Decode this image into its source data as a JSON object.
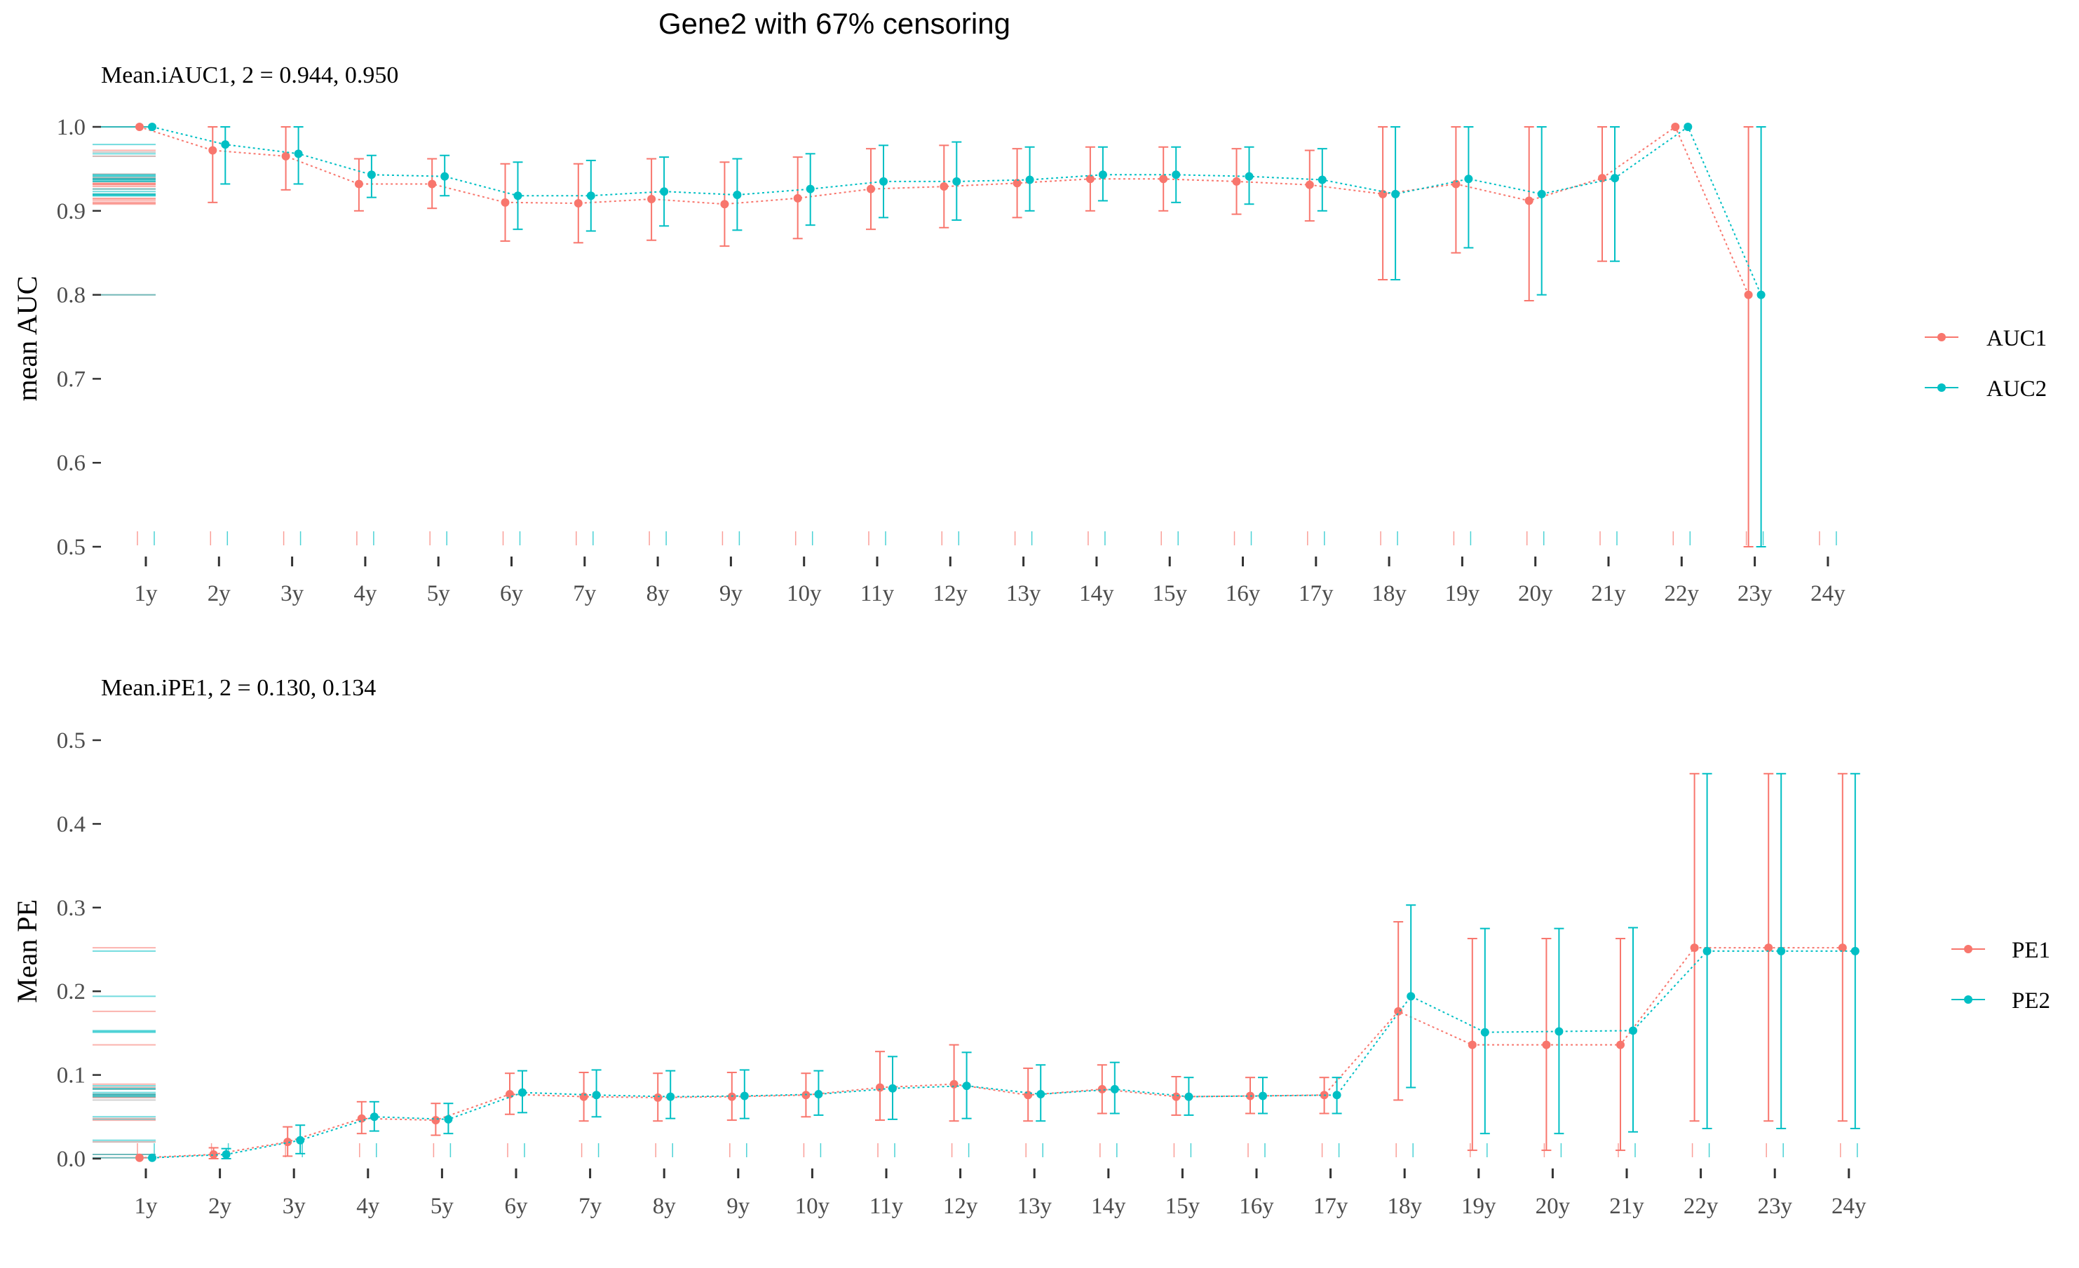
{
  "title": "Gene2 with 67% censoring",
  "colors": {
    "series1": "#F8766D",
    "series2": "#00BFC4",
    "tick": "#333333",
    "text": "#4d4d4d"
  },
  "chart_data": [
    {
      "type": "line",
      "subtitle": "Mean.iAUC1, 2 =  0.944, 0.950",
      "ylabel": "mean AUC",
      "xlabel": "",
      "ylim": [
        0.5,
        1.0
      ],
      "y_ticks": [
        "0.5",
        "0.6",
        "0.7",
        "0.8",
        "0.9",
        "1.0"
      ],
      "categories": [
        "1y",
        "2y",
        "3y",
        "4y",
        "5y",
        "6y",
        "7y",
        "8y",
        "9y",
        "10y",
        "11y",
        "12y",
        "13y",
        "14y",
        "15y",
        "16y",
        "17y",
        "18y",
        "19y",
        "20y",
        "21y",
        "22y",
        "23y",
        "24y"
      ],
      "grid": false,
      "legend_position": "right",
      "series": [
        {
          "name": "AUC1",
          "values": [
            1.0,
            0.972,
            0.965,
            0.932,
            0.932,
            0.91,
            0.909,
            0.914,
            0.908,
            0.915,
            0.926,
            0.929,
            0.933,
            0.938,
            0.938,
            0.935,
            0.931,
            0.92,
            0.932,
            0.912,
            0.939,
            1.0,
            0.8,
            null
          ],
          "lower": [
            null,
            0.91,
            0.925,
            0.9,
            0.903,
            0.864,
            0.862,
            0.865,
            0.858,
            0.867,
            0.878,
            0.88,
            0.892,
            0.9,
            0.9,
            0.896,
            0.888,
            0.818,
            0.85,
            0.793,
            0.84,
            null,
            0.5,
            null
          ],
          "upper": [
            null,
            1.0,
            1.0,
            0.962,
            0.962,
            0.956,
            0.956,
            0.962,
            0.958,
            0.964,
            0.974,
            0.978,
            0.974,
            0.976,
            0.976,
            0.974,
            0.972,
            1.0,
            1.0,
            1.0,
            1.0,
            null,
            1.0,
            null
          ]
        },
        {
          "name": "AUC2",
          "values": [
            1.0,
            0.979,
            0.968,
            0.943,
            0.941,
            0.918,
            0.918,
            0.923,
            0.919,
            0.926,
            0.935,
            0.935,
            0.937,
            0.943,
            0.943,
            0.941,
            0.937,
            0.92,
            0.938,
            0.92,
            0.939,
            1.0,
            0.8,
            null
          ],
          "lower": [
            null,
            0.932,
            0.932,
            0.916,
            0.918,
            0.878,
            0.876,
            0.882,
            0.877,
            0.883,
            0.892,
            0.889,
            0.9,
            0.912,
            0.91,
            0.908,
            0.9,
            0.818,
            0.856,
            0.8,
            0.84,
            null,
            0.5,
            null
          ],
          "upper": [
            null,
            1.0,
            1.0,
            0.966,
            0.966,
            0.958,
            0.96,
            0.964,
            0.962,
            0.968,
            0.978,
            0.982,
            0.976,
            0.976,
            0.976,
            0.976,
            0.974,
            1.0,
            1.0,
            1.0,
            1.0,
            null,
            1.0,
            null
          ]
        }
      ]
    },
    {
      "type": "line",
      "subtitle": "Mean.iPE1, 2 =  0.130, 0.134",
      "ylabel": "Mean PE",
      "xlabel": "",
      "ylim": [
        0.0,
        0.5
      ],
      "y_ticks": [
        "0.0",
        "0.1",
        "0.2",
        "0.3",
        "0.4",
        "0.5"
      ],
      "categories": [
        "1y",
        "2y",
        "3y",
        "4y",
        "5y",
        "6y",
        "7y",
        "8y",
        "9y",
        "10y",
        "11y",
        "12y",
        "13y",
        "14y",
        "15y",
        "16y",
        "17y",
        "18y",
        "19y",
        "20y",
        "21y",
        "22y",
        "23y",
        "24y"
      ],
      "grid": false,
      "legend_position": "right",
      "series": [
        {
          "name": "PE1",
          "values": [
            0.001,
            0.005,
            0.02,
            0.048,
            0.046,
            0.077,
            0.074,
            0.073,
            0.074,
            0.076,
            0.085,
            0.089,
            0.076,
            0.083,
            0.074,
            0.075,
            0.076,
            0.176,
            0.136,
            0.136,
            0.136,
            0.252,
            0.252,
            0.252
          ],
          "lower": [
            null,
            0.0,
            0.003,
            0.03,
            0.028,
            0.053,
            0.045,
            0.045,
            0.046,
            0.05,
            0.046,
            0.045,
            0.045,
            0.054,
            0.052,
            0.054,
            0.054,
            0.07,
            0.01,
            0.01,
            0.01,
            0.045,
            0.045,
            0.045
          ],
          "upper": [
            null,
            0.013,
            0.038,
            0.068,
            0.066,
            0.102,
            0.103,
            0.102,
            0.103,
            0.102,
            0.128,
            0.136,
            0.108,
            0.112,
            0.098,
            0.097,
            0.097,
            0.283,
            0.263,
            0.263,
            0.263,
            0.46,
            0.46,
            0.46
          ]
        },
        {
          "name": "PE2",
          "values": [
            0.001,
            0.005,
            0.022,
            0.05,
            0.047,
            0.079,
            0.076,
            0.074,
            0.075,
            0.077,
            0.084,
            0.087,
            0.077,
            0.083,
            0.074,
            0.075,
            0.076,
            0.194,
            0.151,
            0.152,
            0.153,
            0.248,
            0.248,
            0.248
          ],
          "lower": [
            null,
            0.0,
            0.006,
            0.033,
            0.03,
            0.055,
            0.05,
            0.048,
            0.048,
            0.052,
            0.047,
            0.048,
            0.045,
            0.054,
            0.052,
            0.054,
            0.054,
            0.085,
            0.03,
            0.03,
            0.032,
            0.036,
            0.036,
            0.036
          ],
          "upper": [
            null,
            0.012,
            0.04,
            0.068,
            0.066,
            0.105,
            0.106,
            0.105,
            0.106,
            0.105,
            0.122,
            0.127,
            0.112,
            0.115,
            0.097,
            0.097,
            0.097,
            0.303,
            0.275,
            0.275,
            0.276,
            0.46,
            0.46,
            0.46
          ]
        }
      ],
      "rug_values": {
        "PE1": [
          0.001,
          0.005,
          0.02,
          0.046,
          0.048,
          0.073,
          0.074,
          0.076,
          0.077,
          0.083,
          0.085,
          0.089,
          0.136,
          0.176,
          0.252
        ],
        "PE2": [
          0.001,
          0.005,
          0.022,
          0.047,
          0.05,
          0.074,
          0.075,
          0.076,
          0.077,
          0.079,
          0.083,
          0.084,
          0.087,
          0.151,
          0.152,
          0.153,
          0.194,
          0.248
        ]
      }
    }
  ]
}
